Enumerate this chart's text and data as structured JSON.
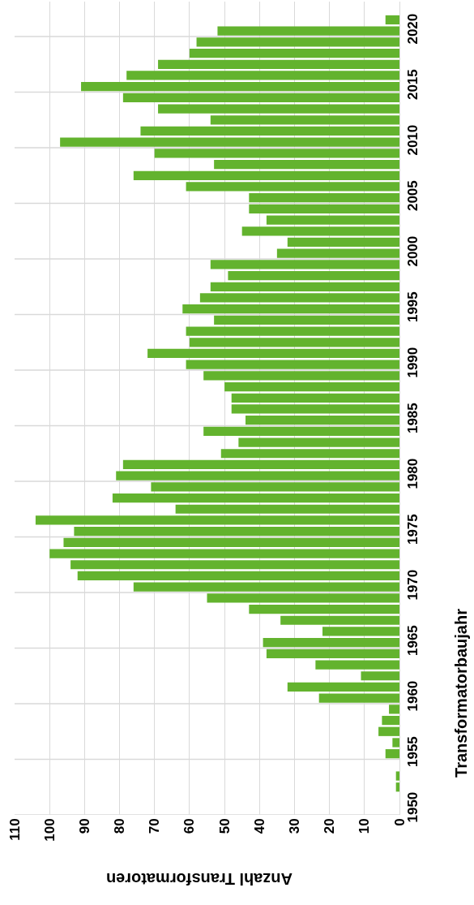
{
  "chart_data": {
    "type": "bar",
    "orientation": "horizontal",
    "xlabel": "Anzahl Transformatoren",
    "ylabel": "Transformatorbaujahr",
    "categories": [
      null,
      "2020",
      null,
      null,
      null,
      null,
      "2015",
      null,
      null,
      null,
      null,
      "2010",
      null,
      null,
      null,
      null,
      "2005",
      null,
      null,
      null,
      null,
      "2000",
      null,
      null,
      null,
      null,
      "1995",
      null,
      null,
      null,
      null,
      "1990",
      null,
      null,
      null,
      null,
      "1985",
      null,
      null,
      null,
      null,
      "1980",
      null,
      null,
      null,
      null,
      "1975",
      null,
      null,
      null,
      null,
      "1970",
      null,
      null,
      null,
      null,
      "1965",
      null,
      null,
      null,
      null,
      "1960",
      null,
      null,
      null,
      null,
      "1955",
      null,
      null,
      null,
      null,
      "1950"
    ],
    "values": [
      4,
      52,
      58,
      60,
      69,
      78,
      91,
      79,
      69,
      54,
      74,
      97,
      70,
      53,
      76,
      61,
      43,
      43,
      38,
      45,
      32,
      35,
      54,
      49,
      54,
      57,
      62,
      53,
      61,
      60,
      72,
      61,
      56,
      50,
      48,
      48,
      44,
      56,
      46,
      51,
      79,
      81,
      71,
      82,
      64,
      104,
      93,
      96,
      100,
      94,
      92,
      76,
      55,
      43,
      34,
      22,
      39,
      38,
      24,
      11,
      32,
      23,
      3,
      5,
      6,
      2,
      4,
      null,
      1,
      1,
      null,
      null
    ],
    "color": "#63b32e",
    "xlim": [
      110,
      0
    ],
    "xticks": [
      110,
      100,
      90,
      80,
      70,
      60,
      50,
      40,
      30,
      20,
      10,
      0
    ],
    "grid": true
  }
}
